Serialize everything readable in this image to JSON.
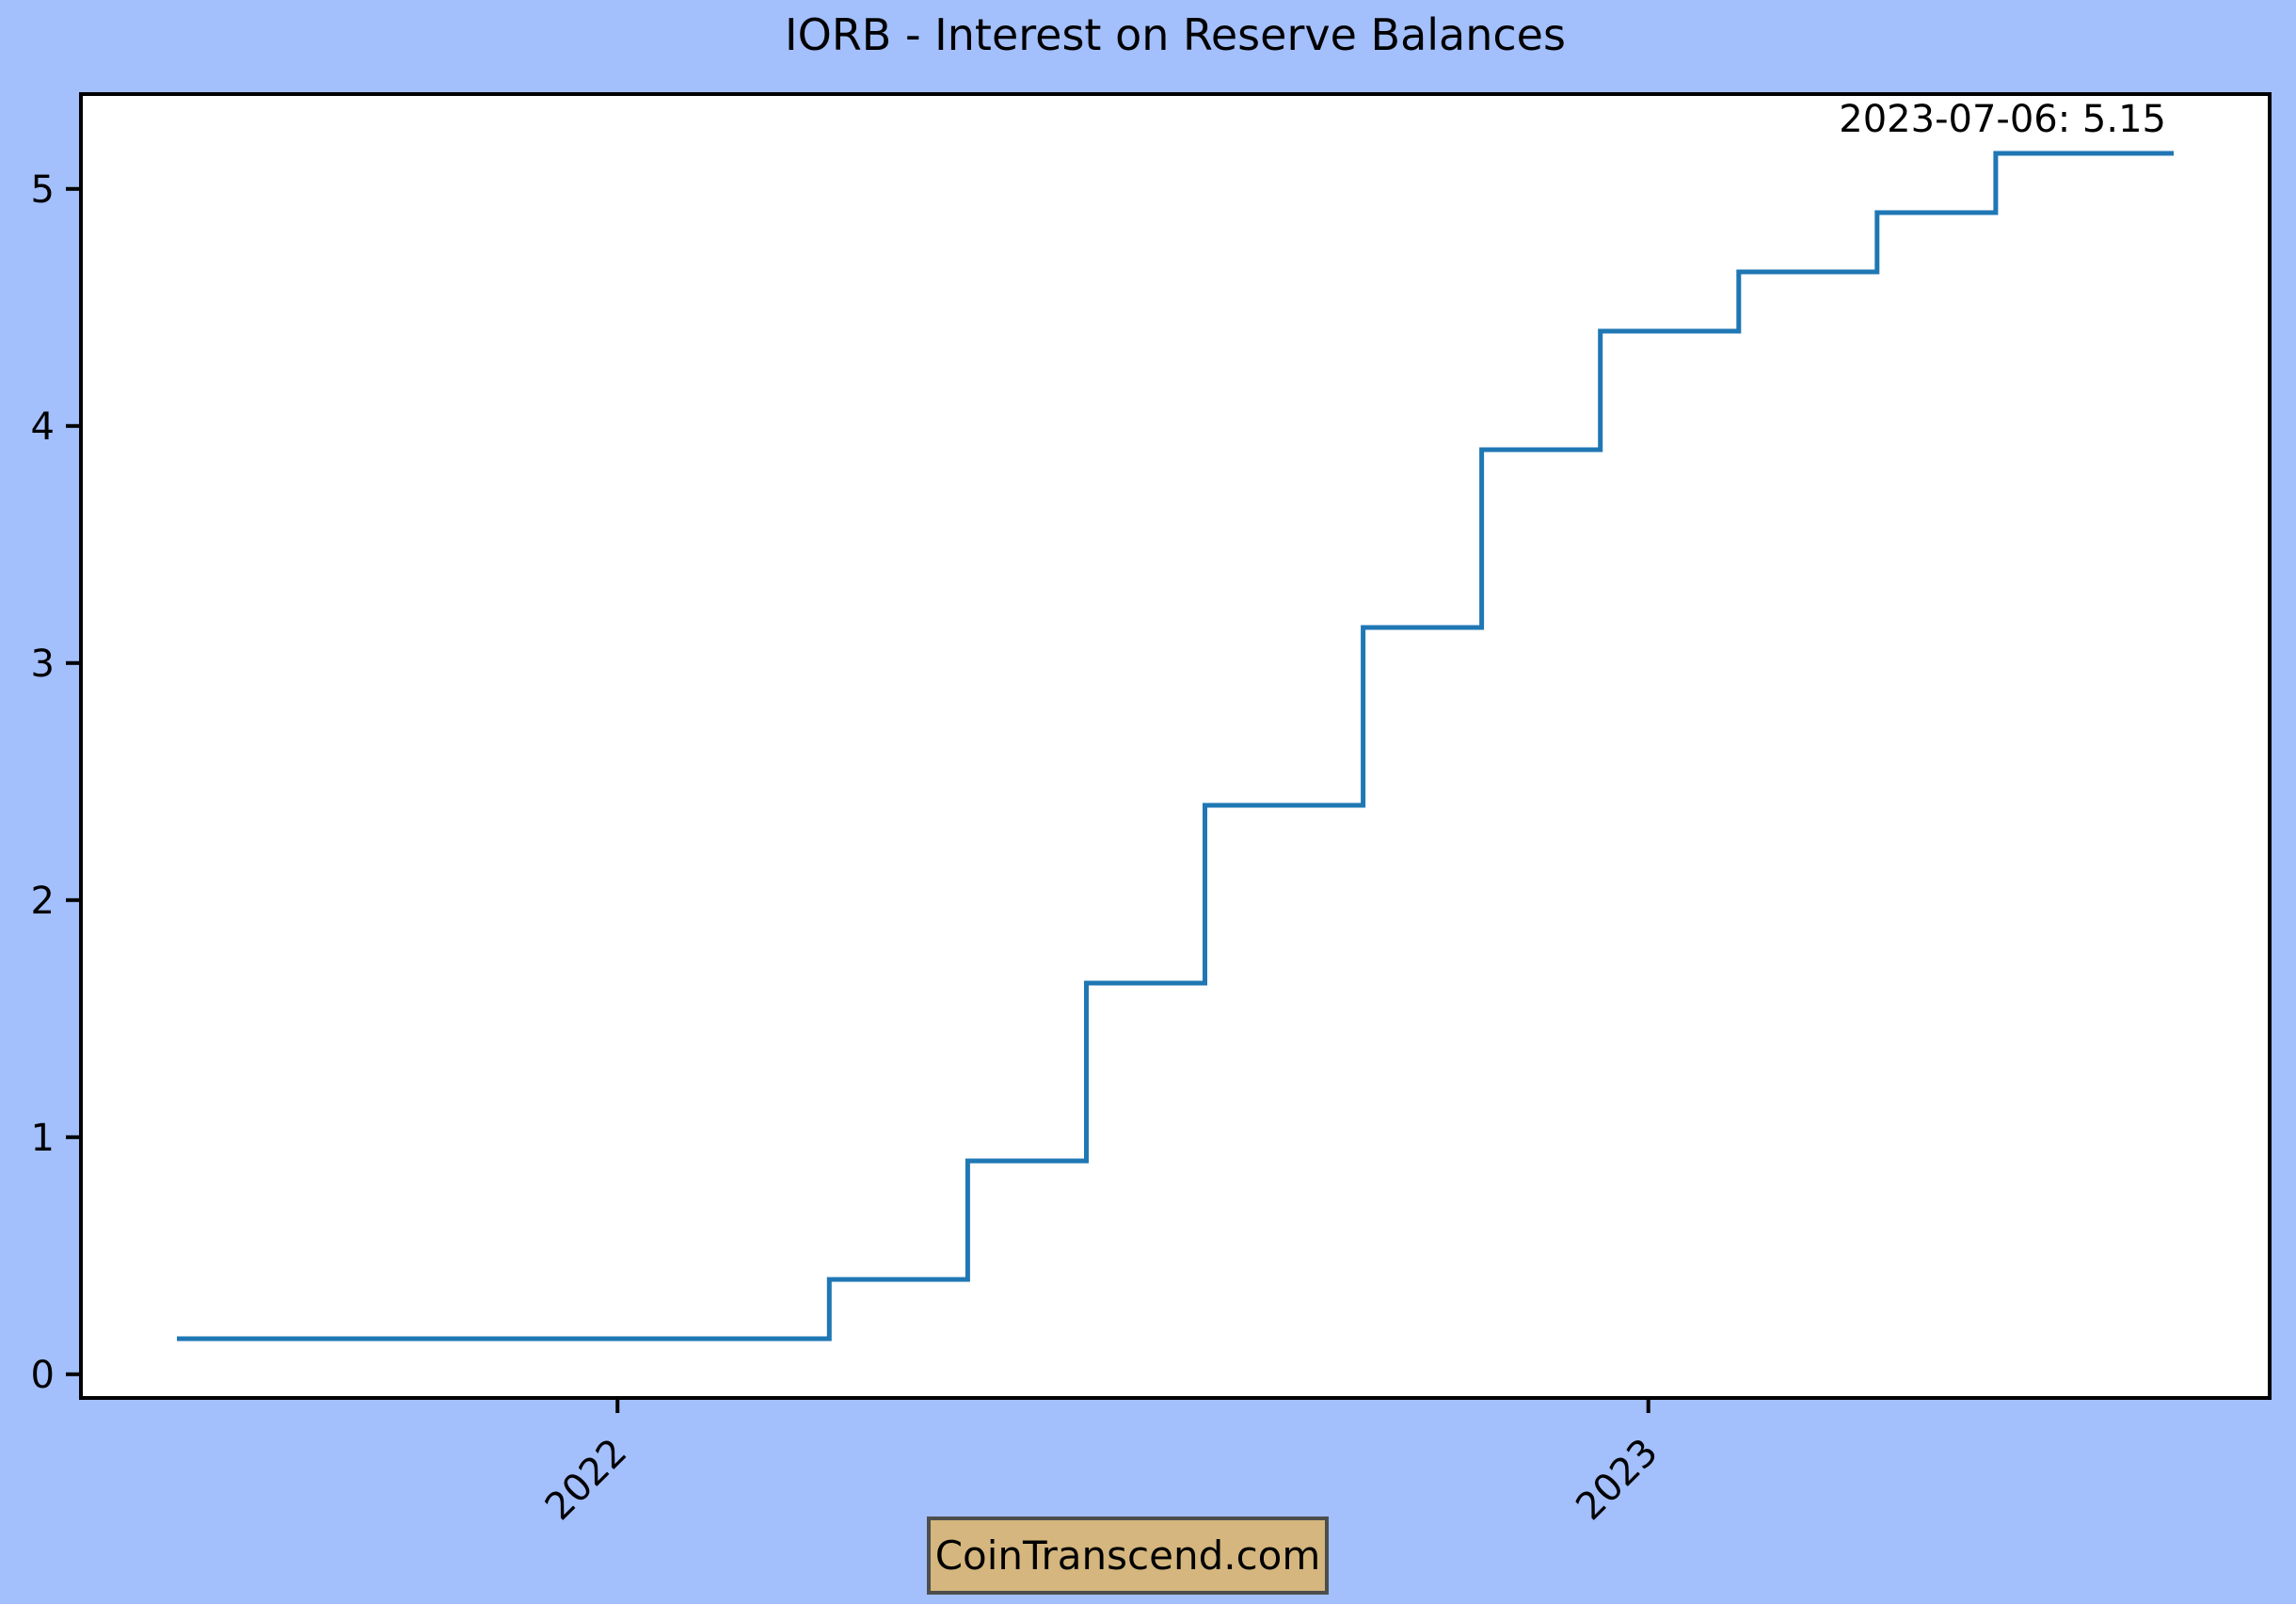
{
  "figure": {
    "title": "IORB - Interest on Reserve Balances",
    "watermark": "CoinTranscend.com",
    "colors": {
      "background": "#a3bffc",
      "plot_background": "#ffffff",
      "frame": "#000000",
      "line": "#1f77b4",
      "watermark_fill": "#d4b67e",
      "watermark_border": "#4d4d4d",
      "text": "#000000"
    }
  },
  "chart_data": {
    "type": "line",
    "step": "post",
    "title": "IORB - Interest on Reserve Balances",
    "xlabel": "",
    "ylabel": "",
    "grid": false,
    "legend": "none",
    "annotation": {
      "text": "2023-07-06: 5.15",
      "position": "top-right"
    },
    "x_ticks": [
      {
        "label": "2022",
        "date": "2022-01-01"
      },
      {
        "label": "2023",
        "date": "2023-01-01"
      }
    ],
    "x_tick_rotation": 45,
    "y_ticks": [
      0,
      1,
      2,
      3,
      4,
      5
    ],
    "ylim": [
      -0.1,
      5.4
    ],
    "xlim": [
      "2021-06-25",
      "2023-08-09"
    ],
    "series": [
      {
        "name": "IORB",
        "color": "#1f77b4",
        "points": [
          {
            "date": "2021-07-29",
            "value": 0.15
          },
          {
            "date": "2022-03-17",
            "value": 0.4
          },
          {
            "date": "2022-05-05",
            "value": 0.9
          },
          {
            "date": "2022-06-16",
            "value": 1.65
          },
          {
            "date": "2022-07-28",
            "value": 2.4
          },
          {
            "date": "2022-09-22",
            "value": 3.15
          },
          {
            "date": "2022-11-03",
            "value": 3.9
          },
          {
            "date": "2022-12-15",
            "value": 4.4
          },
          {
            "date": "2023-02-02",
            "value": 4.65
          },
          {
            "date": "2023-03-23",
            "value": 4.9
          },
          {
            "date": "2023-05-04",
            "value": 5.15
          },
          {
            "date": "2023-07-06",
            "value": 5.15
          }
        ]
      }
    ]
  }
}
